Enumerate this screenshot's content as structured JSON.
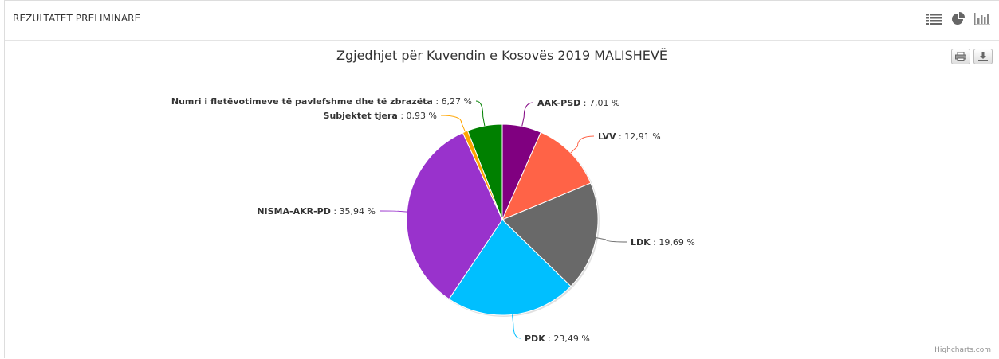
{
  "header": {
    "title": "REZULTATET PRELIMINARE"
  },
  "icons": {
    "list": "list-icon",
    "pie": "pie-chart-icon",
    "bar": "bar-chart-icon",
    "print": "print-icon",
    "download": "download-icon"
  },
  "credits": "Highcharts.com",
  "chart_data": {
    "type": "pie",
    "title": "Zgjedhjet për Kuvendin e Kosovës 2019 MALISHEVË",
    "value_suffix": " %",
    "slices": [
      {
        "name": "AAK-PSD",
        "value": 7.01,
        "label": "7,01 %",
        "color": "#800080"
      },
      {
        "name": "LVV",
        "value": 12.91,
        "label": "12,91 %",
        "color": "#FF6347"
      },
      {
        "name": "LDK",
        "value": 19.69,
        "label": "19,69 %",
        "color": "#696969"
      },
      {
        "name": "PDK",
        "value": 23.49,
        "label": "23,49 %",
        "color": "#00BFFF"
      },
      {
        "name": "NISMA-AKR-PD",
        "value": 35.94,
        "label": "35,94 %",
        "color": "#9932CC"
      },
      {
        "name": "Subjektet tjera",
        "value": 0.93,
        "label": "0,93 %",
        "color": "#FFA500"
      },
      {
        "name": "Numri i fletëvotimeve të pavlefshme dhe të zbrazëta",
        "value": 6.27,
        "label": "6,27 %",
        "color": "#008000"
      }
    ]
  }
}
